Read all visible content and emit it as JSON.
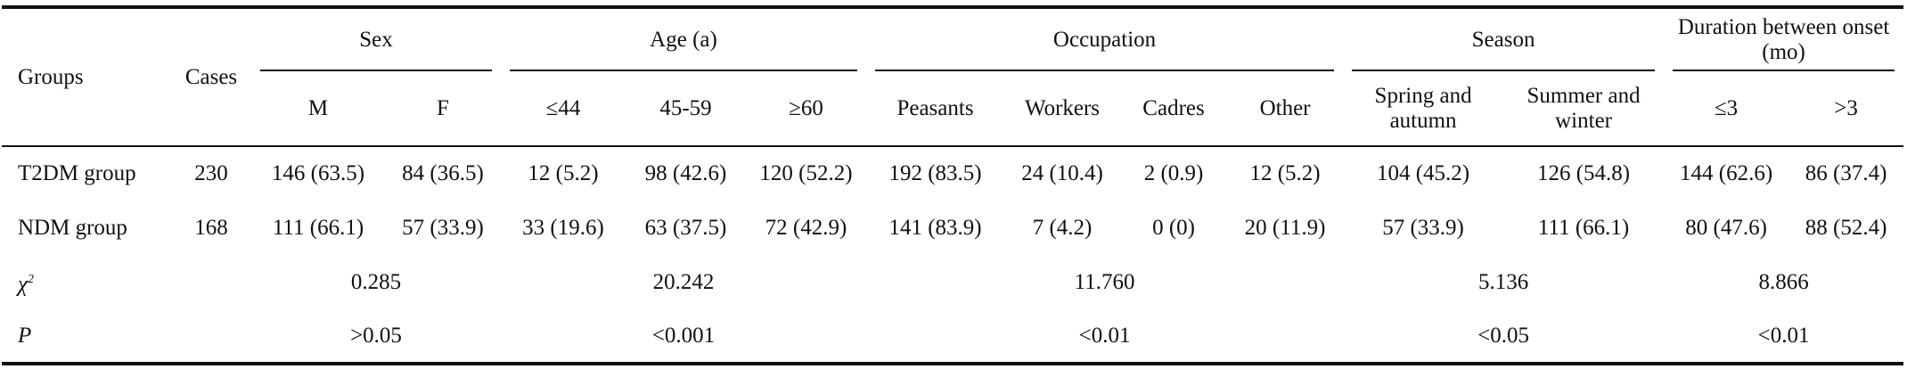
{
  "headers": {
    "groups": "Groups",
    "cases": "Cases",
    "sex": "Sex",
    "age": "Age (a)",
    "occupation": "Occupation",
    "season": "Season",
    "duration": "Duration between onset (mo)",
    "sub": [
      "M",
      "F",
      "≤44",
      "45-59",
      "≥60",
      "Peasants",
      "Workers",
      "Cadres",
      "Other",
      "Spring and autumn",
      "Summer and winter",
      "≤3",
      ">3"
    ]
  },
  "rows": [
    {
      "group": "T2DM group",
      "cases": "230",
      "cells": [
        "146 (63.5)",
        "84 (36.5)",
        "12 (5.2)",
        "98 (42.6)",
        "120 (52.2)",
        "192 (83.5)",
        "24 (10.4)",
        "2 (0.9)",
        "12 (5.2)",
        "104 (45.2)",
        "126 (54.8)",
        "144 (62.6)",
        "86 (37.4)"
      ]
    },
    {
      "group": "NDM group",
      "cases": "168",
      "cells": [
        "111 (66.1)",
        "57 (33.9)",
        "33 (19.6)",
        "63 (37.5)",
        "72 (42.9)",
        "141 (83.9)",
        "7 (4.2)",
        "0 (0)",
        "20 (11.9)",
        "57 (33.9)",
        "111 (66.1)",
        "80 (47.6)",
        "88 (52.4)"
      ]
    }
  ],
  "chi": {
    "label_base": "χ",
    "label_sup": "2",
    "sex": "0.285",
    "age": "20.242",
    "occupation": "11.760",
    "season": "5.136",
    "duration": "8.866"
  },
  "p": {
    "label": "P",
    "sex": ">0.05",
    "age": "<0.001",
    "occupation": "<0.01",
    "season": "<0.05",
    "duration": "<0.01"
  }
}
